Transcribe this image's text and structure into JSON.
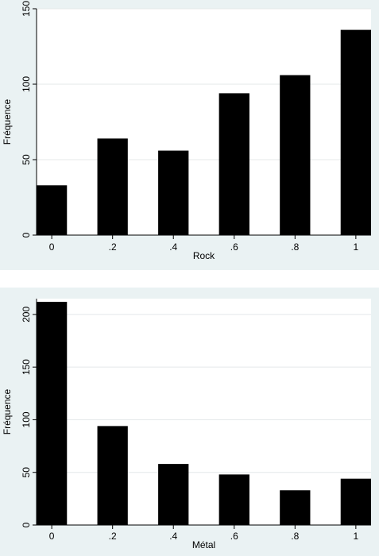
{
  "chart_data": [
    {
      "type": "bar",
      "title": "",
      "xlabel": "Rock",
      "ylabel": "Fréquence",
      "categories": [
        "0",
        ".2",
        ".4",
        ".6",
        ".8",
        "1"
      ],
      "x_values": [
        0,
        0.2,
        0.4,
        0.6,
        0.8,
        1
      ],
      "values": [
        33,
        64,
        56,
        94,
        106,
        136
      ],
      "ylim": [
        0,
        150
      ],
      "xlim": [
        -0.05,
        1.05
      ],
      "yticks": [
        0,
        50,
        100,
        150
      ],
      "ytick_labels": [
        "0",
        "50",
        "100",
        "150"
      ],
      "grid": true,
      "bar_color": "#000000",
      "background": "#eaf2f3"
    },
    {
      "type": "bar",
      "title": "",
      "xlabel": "Métal",
      "ylabel": "Fréquence",
      "categories": [
        "0",
        ".2",
        ".4",
        ".6",
        ".8",
        "1"
      ],
      "x_values": [
        0,
        0.2,
        0.4,
        0.6,
        0.8,
        1
      ],
      "values": [
        212,
        94,
        58,
        48,
        33,
        44
      ],
      "ylim": [
        0,
        215
      ],
      "xlim": [
        -0.05,
        1.05
      ],
      "yticks": [
        0,
        50,
        100,
        150,
        200
      ],
      "ytick_labels": [
        "0",
        "50",
        "100",
        "150",
        "200"
      ],
      "grid": true,
      "bar_color": "#000000",
      "background": "#eaf2f3"
    }
  ]
}
